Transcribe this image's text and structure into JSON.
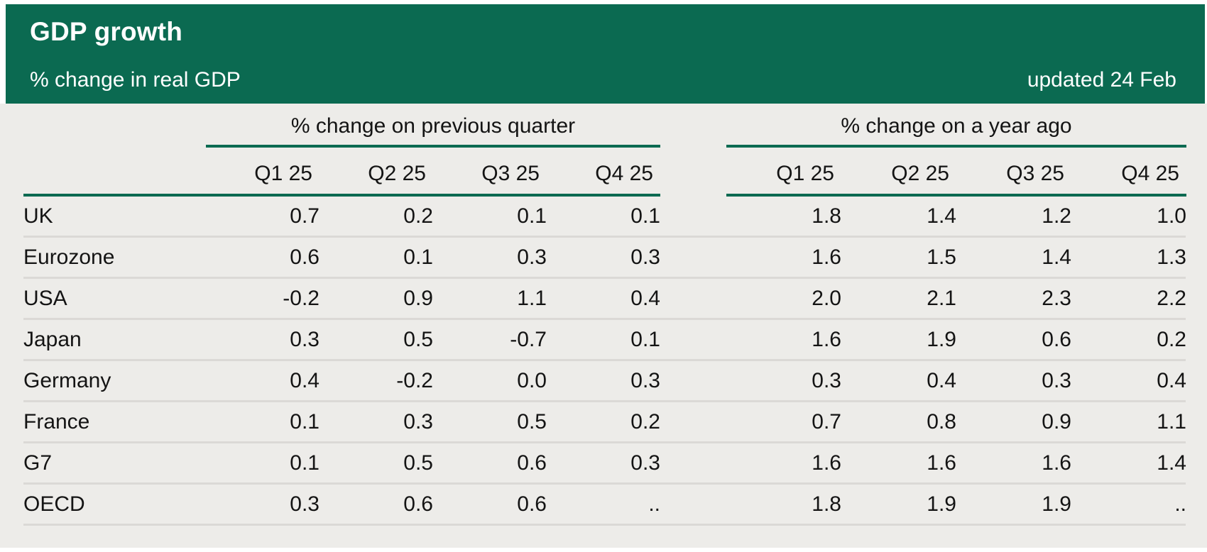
{
  "colors": {
    "header_background": "#0b6a51",
    "panel_background": "#edece9",
    "green_rule": "#0b6a51",
    "gray_rule": "#dbd9d6",
    "header_text": "#ffffff",
    "body_text": "#141414"
  },
  "header": {
    "title": "GDP growth",
    "subtitle": "% change in real GDP",
    "updated": "updated 24 Feb"
  },
  "table": {
    "group1_label": "% change on previous quarter",
    "group2_label": "% change on a year ago",
    "columns1": [
      "Q1 25",
      "Q2 25",
      "Q3 25",
      "Q4 25"
    ],
    "columns2": [
      "Q1 25",
      "Q2 25",
      "Q3 25",
      "Q4 25"
    ],
    "rows": [
      {
        "label": "UK",
        "prev": [
          "0.7",
          "0.2",
          "0.1",
          "0.1"
        ],
        "year": [
          "1.8",
          "1.4",
          "1.2",
          "1.0"
        ]
      },
      {
        "label": "Eurozone",
        "prev": [
          "0.6",
          "0.1",
          "0.3",
          "0.3"
        ],
        "year": [
          "1.6",
          "1.5",
          "1.4",
          "1.3"
        ]
      },
      {
        "label": "USA",
        "prev": [
          "-0.2",
          "0.9",
          "1.1",
          "0.4"
        ],
        "year": [
          "2.0",
          "2.1",
          "2.3",
          "2.2"
        ]
      },
      {
        "label": "Japan",
        "prev": [
          "0.3",
          "0.5",
          "-0.7",
          "0.1"
        ],
        "year": [
          "1.6",
          "1.9",
          "0.6",
          "0.2"
        ]
      },
      {
        "label": "Germany",
        "prev": [
          "0.4",
          "-0.2",
          "0.0",
          "0.3"
        ],
        "year": [
          "0.3",
          "0.4",
          "0.3",
          "0.4"
        ]
      },
      {
        "label": "France",
        "prev": [
          "0.1",
          "0.3",
          "0.5",
          "0.2"
        ],
        "year": [
          "0.7",
          "0.8",
          "0.9",
          "1.1"
        ]
      },
      {
        "label": "G7",
        "prev": [
          "0.1",
          "0.5",
          "0.6",
          "0.3"
        ],
        "year": [
          "1.6",
          "1.6",
          "1.6",
          "1.4"
        ]
      },
      {
        "label": "OECD",
        "prev": [
          "0.3",
          "0.6",
          "0.6",
          ".."
        ],
        "year": [
          "1.8",
          "1.9",
          "1.9",
          ".."
        ]
      }
    ]
  },
  "chart_data": {
    "type": "table",
    "title": "GDP growth",
    "subtitle": "% change in real GDP",
    "updated": "updated 24 Feb",
    "column_groups": [
      {
        "label": "% change on previous quarter",
        "columns": [
          "Q1 25",
          "Q2 25",
          "Q3 25",
          "Q4 25"
        ]
      },
      {
        "label": "% change on a year ago",
        "columns": [
          "Q1 25",
          "Q2 25",
          "Q3 25",
          "Q4 25"
        ]
      }
    ],
    "missing_marker": "..",
    "rows": [
      {
        "label": "UK",
        "prev_quarter": [
          0.7,
          0.2,
          0.1,
          0.1
        ],
        "year_ago": [
          1.8,
          1.4,
          1.2,
          1.0
        ]
      },
      {
        "label": "Eurozone",
        "prev_quarter": [
          0.6,
          0.1,
          0.3,
          0.3
        ],
        "year_ago": [
          1.6,
          1.5,
          1.4,
          1.3
        ]
      },
      {
        "label": "USA",
        "prev_quarter": [
          -0.2,
          0.9,
          1.1,
          0.4
        ],
        "year_ago": [
          2.0,
          2.1,
          2.3,
          2.2
        ]
      },
      {
        "label": "Japan",
        "prev_quarter": [
          0.3,
          0.5,
          -0.7,
          0.1
        ],
        "year_ago": [
          1.6,
          1.9,
          0.6,
          0.2
        ]
      },
      {
        "label": "Germany",
        "prev_quarter": [
          0.4,
          -0.2,
          0.0,
          0.3
        ],
        "year_ago": [
          0.3,
          0.4,
          0.3,
          0.4
        ]
      },
      {
        "label": "France",
        "prev_quarter": [
          0.1,
          0.3,
          0.5,
          0.2
        ],
        "year_ago": [
          0.7,
          0.8,
          0.9,
          1.1
        ]
      },
      {
        "label": "G7",
        "prev_quarter": [
          0.1,
          0.5,
          0.6,
          0.3
        ],
        "year_ago": [
          1.6,
          1.6,
          1.6,
          1.4
        ]
      },
      {
        "label": "OECD",
        "prev_quarter": [
          0.3,
          0.6,
          0.6,
          null
        ],
        "year_ago": [
          1.8,
          1.9,
          1.9,
          null
        ]
      }
    ]
  }
}
